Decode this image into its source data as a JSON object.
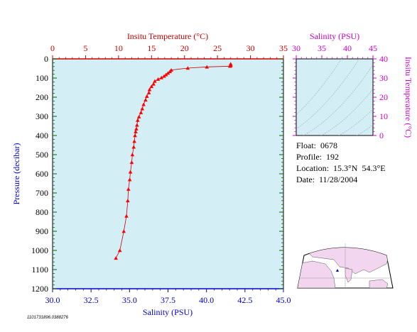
{
  "chart_data": [
    {
      "name": "profile",
      "type": "scatter",
      "top_axis": {
        "label": "Insitu Temperature (°C)",
        "ticks": [
          "0",
          "5",
          "10",
          "15",
          "20",
          "25",
          "30",
          "35"
        ],
        "range": [
          0,
          35
        ],
        "color": "#cc0000"
      },
      "bottom_axis": {
        "label": "Salinity (PSU)",
        "ticks": [
          "30.0",
          "32.5",
          "35.0",
          "37.5",
          "40.0",
          "42.5",
          "45.0"
        ],
        "range": [
          30,
          45
        ],
        "color": "#0000cc"
      },
      "left_axis": {
        "label": "Pressure (decibar)",
        "ticks": [
          "0",
          "100",
          "200",
          "300",
          "400",
          "500",
          "600",
          "700",
          "800",
          "900",
          "1000",
          "1100",
          "1200"
        ],
        "range": [
          0,
          1200
        ],
        "inverted": true
      },
      "grid": false,
      "background": "#d4eef6",
      "series": [
        {
          "kind": "temperature",
          "color": "#ff0000",
          "points": [
            [
              27.0,
              26
            ],
            [
              27.0,
              31
            ],
            [
              27.0,
              34
            ],
            [
              26.9,
              38
            ],
            [
              23.4,
              42
            ],
            [
              20.5,
              48
            ],
            [
              18.0,
              58
            ],
            [
              17.8,
              66
            ],
            [
              17.5,
              74
            ],
            [
              17.2,
              82
            ],
            [
              16.9,
              90
            ],
            [
              16.5,
              98
            ],
            [
              16.0,
              106
            ],
            [
              15.5,
              116
            ],
            [
              15.3,
              131
            ],
            [
              15.0,
              144
            ],
            [
              14.7,
              160
            ],
            [
              14.6,
              176
            ],
            [
              14.3,
              195
            ],
            [
              14.1,
              214
            ],
            [
              13.8,
              238
            ],
            [
              13.6,
              260
            ],
            [
              13.4,
              280
            ],
            [
              13.1,
              302
            ],
            [
              12.9,
              320
            ],
            [
              12.8,
              345
            ],
            [
              12.7,
              365
            ],
            [
              12.6,
              380
            ],
            [
              12.5,
              400
            ],
            [
              12.4,
              430
            ],
            [
              12.3,
              460
            ],
            [
              12.1,
              500
            ],
            [
              12.0,
              540
            ],
            [
              11.8,
              590
            ],
            [
              11.7,
              630
            ],
            [
              11.5,
              680
            ],
            [
              11.4,
              740
            ],
            [
              11.2,
              820
            ],
            [
              10.8,
              900
            ],
            [
              10.2,
              1000
            ],
            [
              9.6,
              1040
            ]
          ]
        }
      ]
    },
    {
      "name": "ts-diagram",
      "type": "line",
      "top_axis": {
        "label": "Salinity (PSU)",
        "ticks": [
          "30",
          "35",
          "40",
          "45"
        ],
        "range": [
          30,
          45
        ],
        "color": "#cc00cc"
      },
      "right_axis": {
        "label": "Insitu Temperature (°C)",
        "ticks": [
          "0",
          "10",
          "20",
          "30",
          "40"
        ],
        "range": [
          0,
          40
        ],
        "color": "#cc00cc"
      },
      "background": "#d4eef6"
    }
  ],
  "float_info": {
    "float": "Float:  0678",
    "profile": "Profile:  192",
    "location": "Location:  15.3°N  54.3°E",
    "date": "Date:  11/28/2004"
  },
  "footer_id": "1101731896.0388276",
  "map": {
    "land_color": "#f2d6f0",
    "ocean_color": "#ffffff",
    "marker_color": "#0000cc"
  }
}
